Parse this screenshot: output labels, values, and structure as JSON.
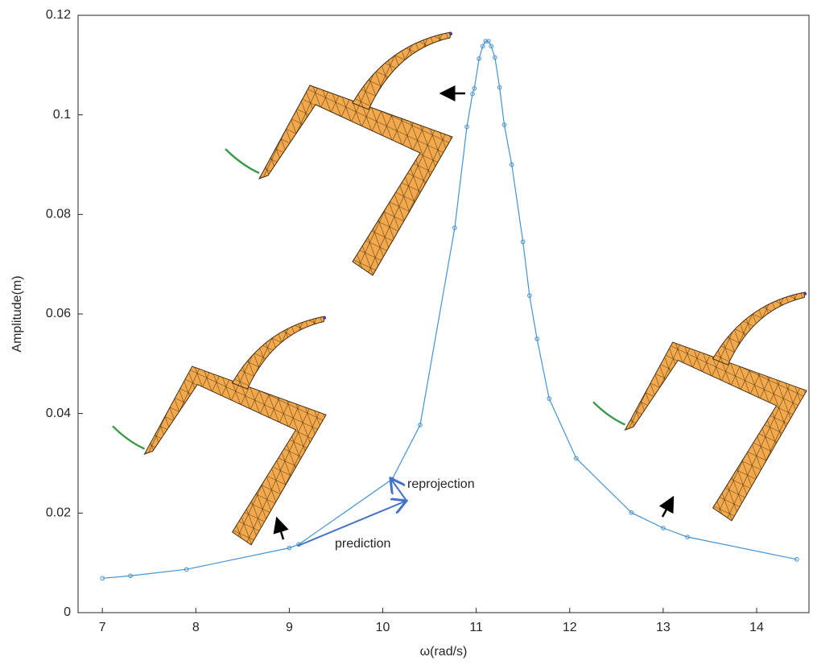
{
  "chart_data": {
    "type": "line",
    "xlabel": "ω(rad/s)",
    "ylabel": "Amplitude(m)",
    "x": [
      7.0,
      7.3,
      7.9,
      9.0,
      9.1,
      10.1,
      10.4,
      10.77,
      10.9,
      10.96,
      10.98,
      11.03,
      11.07,
      11.1,
      11.13,
      11.16,
      11.2,
      11.25,
      11.3,
      11.38,
      11.5,
      11.57,
      11.65,
      11.78,
      12.07,
      12.66,
      13.0,
      13.26,
      14.43
    ],
    "series": [
      {
        "color": "#4393d3",
        "values": [
          0.0069,
          0.0074,
          0.0087,
          0.013,
          0.0137,
          0.0268,
          0.0377,
          0.0773,
          0.0976,
          0.1042,
          0.1053,
          0.1113,
          0.1138,
          0.1148,
          0.1148,
          0.1138,
          0.1115,
          0.1055,
          0.098,
          0.09,
          0.0745,
          0.0637,
          0.055,
          0.043,
          0.031,
          0.0201,
          0.017,
          0.0152,
          0.0107
        ]
      }
    ],
    "xlim": [
      6.74,
      14.56
    ],
    "ylim": [
      0,
      0.12
    ],
    "xticks": [
      7,
      8,
      9,
      10,
      11,
      12,
      13,
      14
    ],
    "yticks": [
      0,
      0.02,
      0.04,
      0.06,
      0.08,
      0.1,
      0.12
    ],
    "annotations": [
      "reprojection",
      "prediction"
    ]
  }
}
